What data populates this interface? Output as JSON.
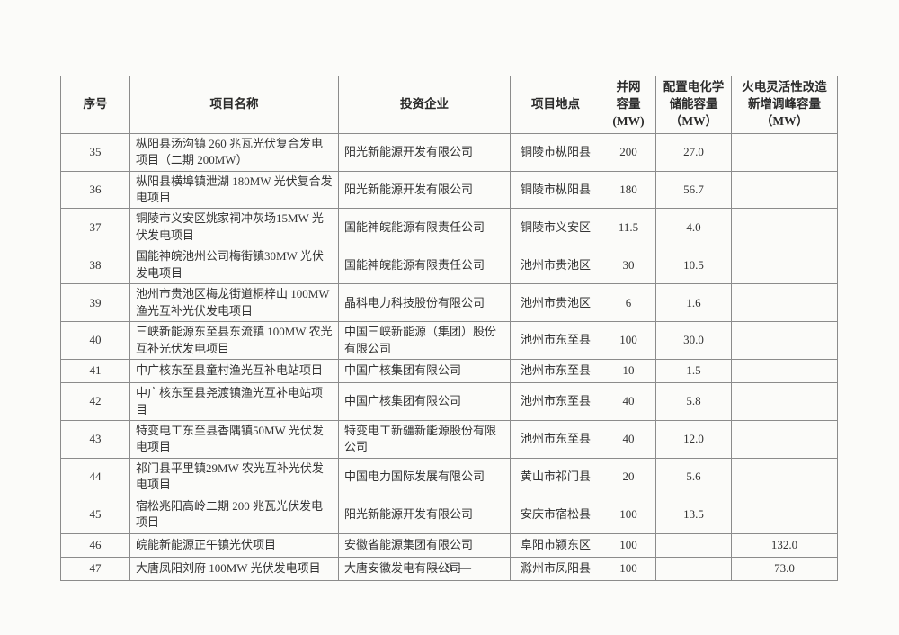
{
  "document": {
    "footer": {
      "page_number": "— 9 —"
    }
  },
  "table": {
    "headers": [
      "序号",
      "项目名称",
      "投资企业",
      "项目地点",
      "并网\n容量\n(MW)",
      "配置电化学\n储能容量\n（MW）",
      "火电灵活性改造\n新增调峰容量\n（MW）"
    ],
    "rows": [
      {
        "no": "35",
        "name": "枞阳县汤沟镇 260 兆瓦光伏复合发电项目（二期 200MW）",
        "investor": "阳光新能源开发有限公司",
        "location": "铜陵市枞阳县",
        "grid": "200",
        "storage": "27.0",
        "peak": ""
      },
      {
        "no": "36",
        "name": "枞阳县横埠镇泄湖 180MW 光伏复合发电项目",
        "investor": "阳光新能源开发有限公司",
        "location": "铜陵市枞阳县",
        "grid": "180",
        "storage": "56.7",
        "peak": ""
      },
      {
        "no": "37",
        "name": "铜陵市义安区姚家祠冲灰场15MW 光伏发电项目",
        "investor": "国能神皖能源有限责任公司",
        "location": "铜陵市义安区",
        "grid": "11.5",
        "storage": "4.0",
        "peak": ""
      },
      {
        "no": "38",
        "name": "国能神皖池州公司梅街镇30MW 光伏发电项目",
        "investor": "国能神皖能源有限责任公司",
        "location": "池州市贵池区",
        "grid": "30",
        "storage": "10.5",
        "peak": ""
      },
      {
        "no": "39",
        "name": "池州市贵池区梅龙街道桐梓山 100MW 渔光互补光伏发电项目",
        "investor": "晶科电力科技股份有限公司",
        "location": "池州市贵池区",
        "grid": "6",
        "storage": "1.6",
        "peak": ""
      },
      {
        "no": "40",
        "name": "三峡新能源东至县东流镇 100MW 农光互补光伏发电项目",
        "investor": "中国三峡新能源（集团）股份有限公司",
        "location": "池州市东至县",
        "grid": "100",
        "storage": "30.0",
        "peak": ""
      },
      {
        "no": "41",
        "name": "中广核东至县童村渔光互补电站项目",
        "investor": "中国广核集团有限公司",
        "location": "池州市东至县",
        "grid": "10",
        "storage": "1.5",
        "peak": ""
      },
      {
        "no": "42",
        "name": "中广核东至县尧渡镇渔光互补电站项目",
        "investor": "中国广核集团有限公司",
        "location": "池州市东至县",
        "grid": "40",
        "storage": "5.8",
        "peak": ""
      },
      {
        "no": "43",
        "name": "特变电工东至县香隅镇50MW 光伏发电项目",
        "investor": "特变电工新疆新能源股份有限公司",
        "location": "池州市东至县",
        "grid": "40",
        "storage": "12.0",
        "peak": ""
      },
      {
        "no": "44",
        "name": "祁门县平里镇29MW 农光互补光伏发电项目",
        "investor": "中国电力国际发展有限公司",
        "location": "黄山市祁门县",
        "grid": "20",
        "storage": "5.6",
        "peak": ""
      },
      {
        "no": "45",
        "name": "宿松兆阳高岭二期 200 兆瓦光伏发电项目",
        "investor": "阳光新能源开发有限公司",
        "location": "安庆市宿松县",
        "grid": "100",
        "storage": "13.5",
        "peak": ""
      },
      {
        "no": "46",
        "name": "皖能新能源正午镇光伏项目",
        "investor": "安徽省能源集团有限公司",
        "location": "阜阳市颍东区",
        "grid": "100",
        "storage": "",
        "peak": "132.0"
      },
      {
        "no": "47",
        "name": "大唐凤阳刘府 100MW 光伏发电项目",
        "investor": "大唐安徽发电有限公司",
        "location": "滁州市凤阳县",
        "grid": "100",
        "storage": "",
        "peak": "73.0"
      }
    ]
  }
}
